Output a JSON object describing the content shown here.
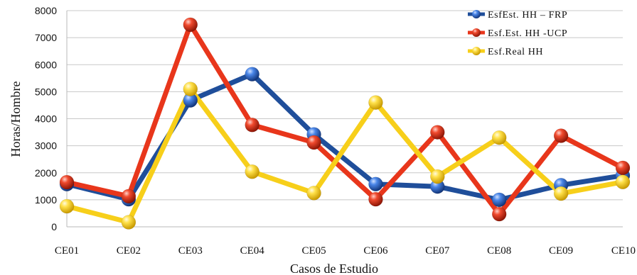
{
  "chart_data": {
    "type": "line",
    "categories": [
      "CE01",
      "CE02",
      "CE03",
      "CE04",
      "CE05",
      "CE06",
      "CE07",
      "CE08",
      "CE09",
      "CE10"
    ],
    "series": [
      {
        "name": "EsfEst. HH – FRP",
        "color": "#1f4e9a",
        "values": [
          1580,
          1020,
          4680,
          5650,
          3420,
          1580,
          1490,
          1000,
          1540,
          1900
        ]
      },
      {
        "name": "Esf.Est. HH -UCP",
        "color": "#e8361b",
        "values": [
          1650,
          1130,
          7480,
          3770,
          3120,
          1020,
          3500,
          470,
          3370,
          2180
        ]
      },
      {
        "name": "Esf.Real HH",
        "color": "#f7cf1a",
        "values": [
          760,
          170,
          5100,
          2040,
          1250,
          4600,
          1860,
          3300,
          1230,
          1660
        ]
      }
    ],
    "y_ticks": [
      "0",
      "1000",
      "2000",
      "3000",
      "4000",
      "5000",
      "6000",
      "7000",
      "8000"
    ],
    "ylim": [
      0,
      8000
    ],
    "xlabel": "Casos de Estudio",
    "ylabel": "Horas/Hombre",
    "grid": true,
    "legend_position": "top-right"
  }
}
